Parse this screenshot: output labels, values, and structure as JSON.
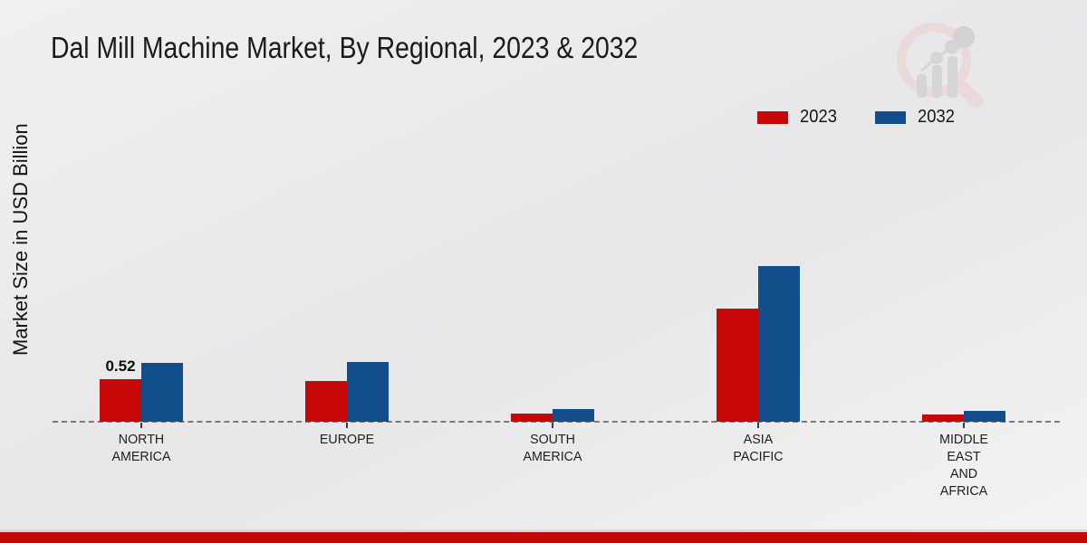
{
  "title": "Dal Mill Machine Market, By Regional, 2023 & 2032",
  "watermark": "market-research-chart-logo",
  "chart_data": {
    "type": "bar",
    "title": "Dal Mill Machine Market, By Regional, 2023 & 2032",
    "xlabel": "",
    "ylabel": "Market Size in USD Billion",
    "categories": [
      "NORTH\nAMERICA",
      "EUROPE",
      "SOUTH\nAMERICA",
      "ASIA\nPACIFIC",
      "MIDDLE\nEAST\nAND\nAFRICA"
    ],
    "series": [
      {
        "name": "2023",
        "color": "#c80808",
        "values": [
          0.52,
          0.5,
          0.1,
          1.39,
          0.09
        ]
      },
      {
        "name": "2032",
        "color": "#114e8b",
        "values": [
          0.72,
          0.73,
          0.15,
          1.91,
          0.13
        ]
      }
    ],
    "annotations": [
      {
        "text": "0.52",
        "series_index": 0,
        "category_index": 0
      }
    ],
    "ylim": [
      0,
      2.2
    ],
    "grid": false,
    "y_axis_ticks_visible": false,
    "legend_position": "top-right",
    "baseline_style": "dashed"
  },
  "footer": {
    "accent_color": "#c20707"
  }
}
